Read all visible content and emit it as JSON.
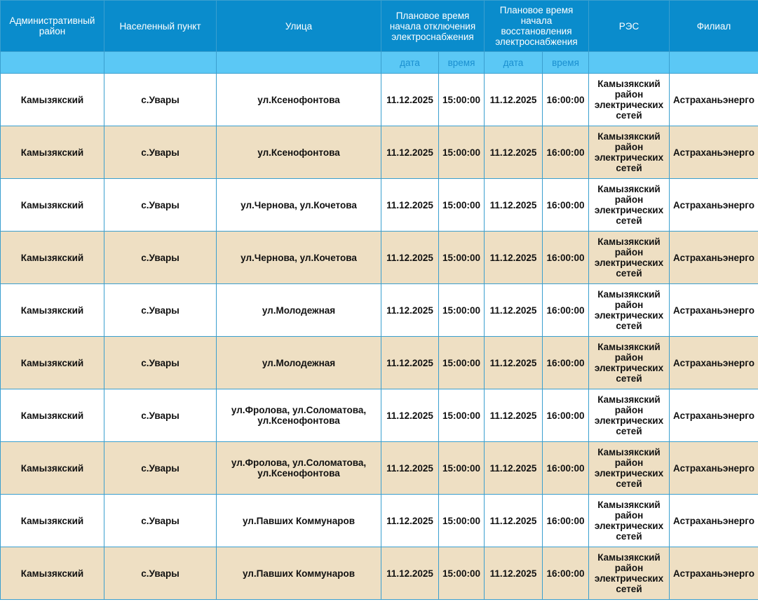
{
  "headers": {
    "district": "Административный район",
    "locality": "Населенный пункт",
    "street": "Улица",
    "off_time": "Плановое время начала отключения электроснабжения",
    "restore_time": "Плановое время начала восстановления электроснабжения",
    "res": "РЭС",
    "branch": "Филиал",
    "date": "дата",
    "time": "время"
  },
  "colors": {
    "header": "#0a8ccc",
    "subheader": "#5bc8f5",
    "row_alt": "#eedfc3"
  },
  "rows": [
    {
      "district": "Камызякский",
      "locality": "с.Увары",
      "street": "ул.Ксенофонтова",
      "off_date": "11.12.2025",
      "off_time": "15:00:00",
      "on_date": "11.12.2025",
      "on_time": "16:00:00",
      "res": "Камызякский район электрических сетей",
      "branch": "Астраханьэнерго"
    },
    {
      "district": "Камызякский",
      "locality": "с.Увары",
      "street": "ул.Ксенофонтова",
      "off_date": "11.12.2025",
      "off_time": "15:00:00",
      "on_date": "11.12.2025",
      "on_time": "16:00:00",
      "res": "Камызякский район электрических сетей",
      "branch": "Астраханьэнерго"
    },
    {
      "district": "Камызякский",
      "locality": "с.Увары",
      "street": "ул.Чернова, ул.Кочетова",
      "off_date": "11.12.2025",
      "off_time": "15:00:00",
      "on_date": "11.12.2025",
      "on_time": "16:00:00",
      "res": "Камызякский район электрических сетей",
      "branch": "Астраханьэнерго"
    },
    {
      "district": "Камызякский",
      "locality": "с.Увары",
      "street": "ул.Чернова, ул.Кочетова",
      "off_date": "11.12.2025",
      "off_time": "15:00:00",
      "on_date": "11.12.2025",
      "on_time": "16:00:00",
      "res": "Камызякский район электрических сетей",
      "branch": "Астраханьэнерго"
    },
    {
      "district": "Камызякский",
      "locality": "с.Увары",
      "street": "ул.Молодежная",
      "off_date": "11.12.2025",
      "off_time": "15:00:00",
      "on_date": "11.12.2025",
      "on_time": "16:00:00",
      "res": "Камызякский район электрических сетей",
      "branch": "Астраханьэнерго"
    },
    {
      "district": "Камызякский",
      "locality": "с.Увары",
      "street": "ул.Молодежная",
      "off_date": "11.12.2025",
      "off_time": "15:00:00",
      "on_date": "11.12.2025",
      "on_time": "16:00:00",
      "res": "Камызякский район электрических сетей",
      "branch": "Астраханьэнерго"
    },
    {
      "district": "Камызякский",
      "locality": "с.Увары",
      "street": "ул.Фролова, ул.Соломатова, ул.Ксенофонтова",
      "off_date": "11.12.2025",
      "off_time": "15:00:00",
      "on_date": "11.12.2025",
      "on_time": "16:00:00",
      "res": "Камызякский район электрических сетей",
      "branch": "Астраханьэнерго"
    },
    {
      "district": "Камызякский",
      "locality": "с.Увары",
      "street": "ул.Фролова, ул.Соломатова, ул.Ксенофонтова",
      "off_date": "11.12.2025",
      "off_time": "15:00:00",
      "on_date": "11.12.2025",
      "on_time": "16:00:00",
      "res": "Камызякский район электрических сетей",
      "branch": "Астраханьэнерго"
    },
    {
      "district": "Камызякский",
      "locality": "с.Увары",
      "street": "ул.Павших Коммунаров",
      "off_date": "11.12.2025",
      "off_time": "15:00:00",
      "on_date": "11.12.2025",
      "on_time": "16:00:00",
      "res": "Камызякский район электрических сетей",
      "branch": "Астраханьэнерго"
    },
    {
      "district": "Камызякский",
      "locality": "с.Увары",
      "street": "ул.Павших Коммунаров",
      "off_date": "11.12.2025",
      "off_time": "15:00:00",
      "on_date": "11.12.2025",
      "on_time": "16:00:00",
      "res": "Камызякский район электрических сетей",
      "branch": "Астраханьэнерго"
    }
  ]
}
